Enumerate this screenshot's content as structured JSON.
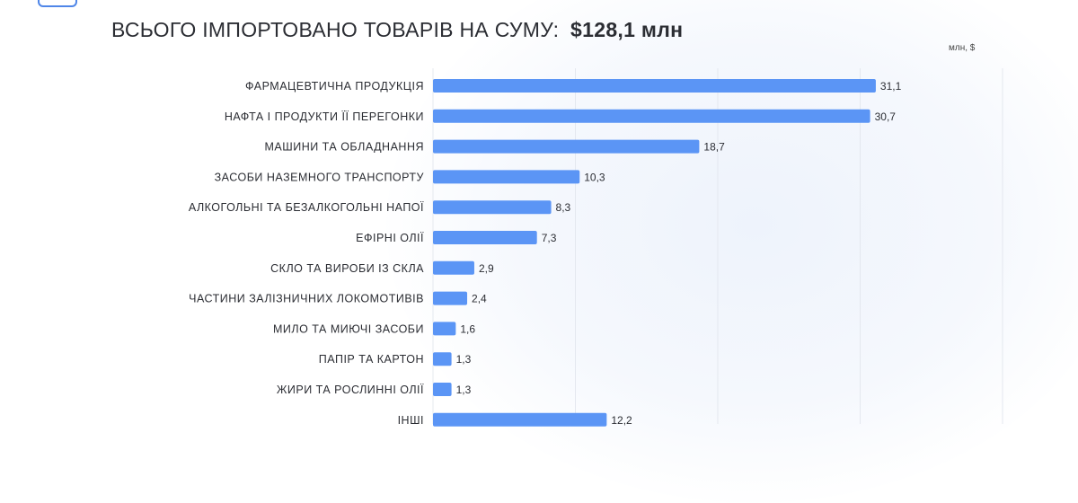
{
  "header": {
    "subtitle_text": "ВСЬОГО ІМПОРТОВАНО ТОВАРІВ НА СУМУ:",
    "subtitle_total": "$128,1 млн",
    "unit_label": "млн, $"
  },
  "chart_data": {
    "type": "bar",
    "orientation": "horizontal",
    "categories": [
      "ФАРМАЦЕВТИЧНА ПРОДУКЦІЯ",
      "НАФТА І ПРОДУКТИ ЇЇ ПЕРЕГОНКИ",
      "МАШИНИ ТА ОБЛАДНАННЯ",
      "ЗАСОБИ НАЗЕМНОГО ТРАНСПОРТУ",
      "АЛКОГОЛЬНІ ТА БЕЗАЛКОГОЛЬНІ НАПОЇ",
      "ЕФІРНІ ОЛІЇ",
      "СКЛО ТА ВИРОБИ ІЗ СКЛА",
      "ЧАСТИНИ ЗАЛІЗНИЧНИХ ЛОКОМОТИВІВ",
      "МИЛО ТА МИЮЧІ ЗАСОБИ",
      "ПАПІР ТА КАРТОН",
      "ЖИРИ ТА РОСЛИННІ ОЛІЇ",
      "ІНШІ"
    ],
    "values": [
      31.1,
      30.7,
      18.7,
      10.3,
      8.3,
      7.3,
      2.9,
      2.4,
      1.6,
      1.3,
      1.3,
      12.2
    ],
    "value_labels": [
      "31,1",
      "30,7",
      "18,7",
      "10,3",
      "8,3",
      "7,3",
      "2,9",
      "2,4",
      "1,6",
      "1,3",
      "1,3",
      "12,2"
    ],
    "xlim": [
      0,
      40
    ],
    "grid": true,
    "colors": {
      "bar": "#5b95f5",
      "grid": "#e4e8ef"
    }
  }
}
